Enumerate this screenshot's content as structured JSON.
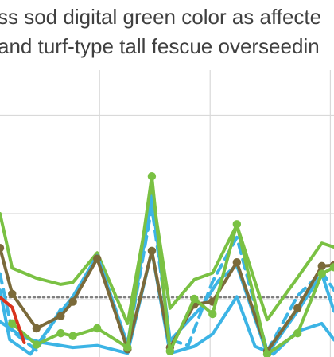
{
  "chart_data": {
    "type": "line",
    "title_lines": [
      "ss sod digital green color as affecte",
      "and turf-type tall fescue overseedin"
    ],
    "xlim": [
      0,
      27.5
    ],
    "ylim": [
      0,
      1
    ],
    "grid": true,
    "reference_line": {
      "y": 0.208,
      "style": "dotted",
      "color": "#7f7f7f"
    },
    "x_gridlines": [
      8.2,
      17.3,
      27.2
    ],
    "y_gridlines": [
      0.2,
      0.5,
      0.843
    ],
    "series": [
      {
        "color": "#7ac143",
        "dash": "solid",
        "markers": false,
        "points": [
          [
            0,
            0.5
          ],
          [
            1,
            0.31
          ],
          [
            3,
            0.275
          ],
          [
            5,
            0.253
          ],
          [
            6,
            0.26
          ],
          [
            8,
            0.363
          ],
          [
            10.5,
            0.117
          ],
          [
            12.5,
            0.583
          ],
          [
            14,
            0.17
          ],
          [
            16,
            0.27
          ],
          [
            17.5,
            0.293
          ],
          [
            19.5,
            0.46
          ],
          [
            22,
            0.13
          ],
          [
            24.5,
            0.277
          ],
          [
            26.5,
            0.397
          ],
          [
            27.5,
            0.383
          ]
        ]
      },
      {
        "color": "#3cb4e5",
        "dash": "dashed",
        "markers": false,
        "points": [
          [
            0,
            0.29
          ],
          [
            1,
            0.09
          ],
          [
            3,
            0.023
          ],
          [
            5,
            0.167
          ],
          [
            6,
            0.2
          ],
          [
            8,
            0.355
          ],
          [
            10.5,
            0.043
          ],
          [
            12.5,
            0.523
          ],
          [
            14,
            0.06
          ],
          [
            15.5,
            0.04
          ],
          [
            17.5,
            0.263
          ],
          [
            19.5,
            0.417
          ],
          [
            22,
            0.02
          ],
          [
            24.5,
            0.213
          ],
          [
            26.5,
            0.297
          ],
          [
            27.5,
            0.233
          ]
        ]
      },
      {
        "color": "#3cb4e5",
        "dash": "solid",
        "markers": false,
        "points": [
          [
            0,
            0.233
          ],
          [
            0.8,
            0.06
          ],
          [
            2.5,
            0.01
          ],
          [
            5,
            0.157
          ],
          [
            6,
            0.21
          ],
          [
            8,
            0.353
          ],
          [
            10.5,
            0.043
          ],
          [
            12.5,
            0.56
          ],
          [
            14,
            0.057
          ],
          [
            16.5,
            0.17
          ],
          [
            18,
            0.267
          ],
          [
            19.5,
            0.32
          ],
          [
            22,
            0.01
          ],
          [
            24.5,
            0.16
          ],
          [
            26.5,
            0.29
          ],
          [
            27.5,
            0.16
          ]
        ]
      },
      {
        "color": "#3cb4e5",
        "dash": "solid",
        "markers": false,
        "points": [
          [
            0,
            0.123
          ],
          [
            2,
            0.067
          ],
          [
            3.5,
            0.05
          ],
          [
            5,
            0.04
          ],
          [
            6,
            0.033
          ],
          [
            8,
            0.04
          ],
          [
            10.5,
            0.013
          ],
          [
            12.5,
            0.37
          ],
          [
            14,
            0.013
          ],
          [
            16,
            0.037
          ],
          [
            17.5,
            0.08
          ],
          [
            19.5,
            0.21
          ],
          [
            21,
            0.037
          ],
          [
            22.5,
            0.01
          ],
          [
            24.5,
            0.09
          ],
          [
            26.5,
            0.117
          ],
          [
            27.5,
            0.06
          ]
        ]
      },
      {
        "color": "#7b6a3a",
        "dash": "solid",
        "markers": true,
        "points": [
          [
            0,
            0.38
          ],
          [
            1,
            0.22
          ],
          [
            3,
            0.1
          ],
          [
            5,
            0.143
          ],
          [
            6,
            0.193
          ],
          [
            8,
            0.343
          ],
          [
            10.5,
            0.027
          ],
          [
            12.5,
            0.37
          ],
          [
            14,
            0.033
          ],
          [
            16,
            0.183
          ],
          [
            17.5,
            0.193
          ],
          [
            19.5,
            0.33
          ],
          [
            22,
            0.02
          ],
          [
            24.5,
            0.17
          ],
          [
            26.5,
            0.317
          ],
          [
            27.5,
            0.32
          ]
        ]
      },
      {
        "color": "#7ac143",
        "dash": "solid",
        "markers": true,
        "points": [
          [
            1,
            0.117
          ],
          [
            3,
            0.043
          ],
          [
            5,
            0.083
          ],
          [
            6,
            0.073
          ],
          [
            8,
            0.1
          ],
          [
            10.5,
            0.033
          ],
          [
            12.5,
            0.63
          ],
          [
            14,
            0.02
          ],
          [
            16,
            0.203
          ],
          [
            17.5,
            0.15
          ],
          [
            19.5,
            0.463
          ],
          [
            22,
            0.01
          ],
          [
            24.5,
            0.083
          ],
          [
            26.5,
            0.29
          ],
          [
            27.5,
            0.313
          ]
        ]
      },
      {
        "color": "#d9331c",
        "dash": "solid",
        "markers": false,
        "points": [
          [
            0,
            0.208
          ],
          [
            1,
            0.173
          ],
          [
            2,
            0.05
          ]
        ]
      }
    ]
  }
}
